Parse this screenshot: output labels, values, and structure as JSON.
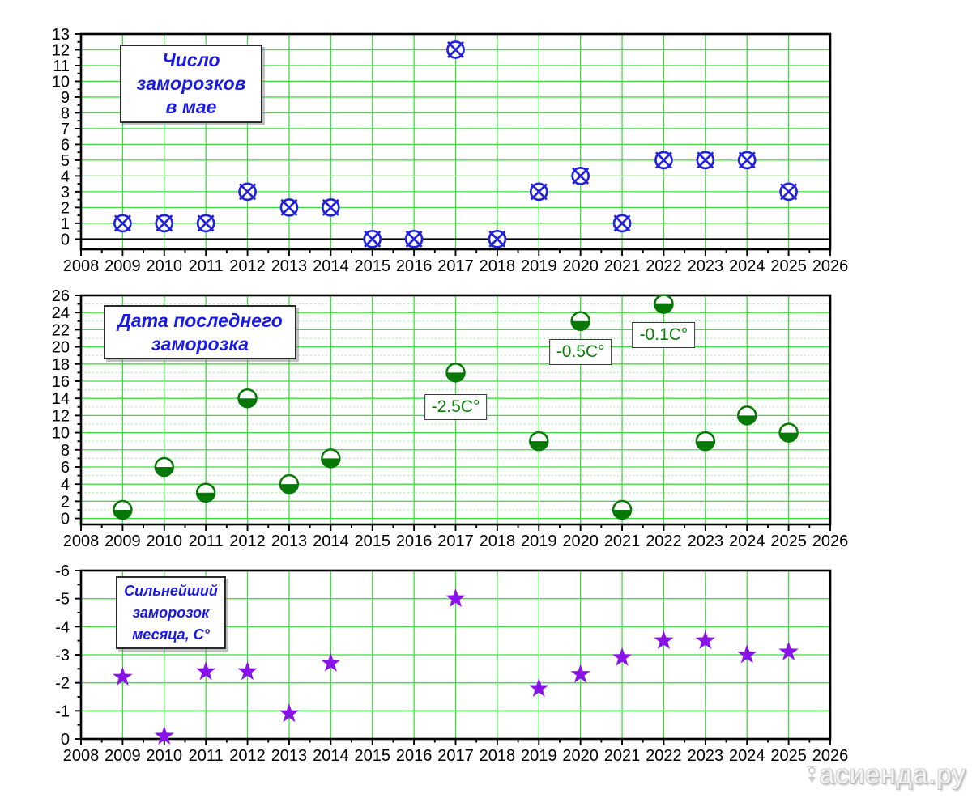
{
  "figure": {
    "background": "#ffffff"
  },
  "watermark": {
    "text": "асиенда.ру",
    "icon": "shovel-sprout-icon"
  },
  "x_axis": {
    "min": 2008,
    "max": 2026,
    "tick_labels": [
      "2008",
      "2009",
      "2010",
      "2011",
      "2012",
      "2013",
      "2014",
      "2015",
      "2016",
      "2017",
      "2018",
      "2019",
      "2020",
      "2021",
      "2022",
      "2023",
      "2024",
      "2025",
      "2026"
    ]
  },
  "colors": {
    "grid_major": "#3edd3e",
    "grid_minor": "#9ce89c",
    "axis": "#000000",
    "title_text": "#1a1ae6",
    "annotation_text": "#0a7d0a"
  },
  "chart_data": [
    {
      "type": "scatter",
      "title": "Число заморозков в мае",
      "title_lines": [
        "Число",
        "заморозков",
        "в мае"
      ],
      "marker": "circled-x",
      "marker_color": "#2222dd",
      "x": [
        2009,
        2010,
        2011,
        2012,
        2013,
        2014,
        2015,
        2016,
        2017,
        2018,
        2019,
        2020,
        2021,
        2022,
        2023,
        2024,
        2025
      ],
      "y": [
        1,
        1,
        1,
        3,
        2,
        2,
        0,
        0,
        12,
        0,
        3,
        4,
        1,
        5,
        5,
        5,
        3
      ],
      "xlim": [
        2008,
        2026
      ],
      "ylim": [
        0,
        13
      ],
      "yticks": [
        0,
        1,
        2,
        3,
        4,
        5,
        6,
        7,
        8,
        9,
        10,
        11,
        12,
        13
      ],
      "ytick_labels": [
        "0",
        "1",
        "2",
        "3",
        "4",
        "5",
        "6",
        "7",
        "8",
        "9",
        "10",
        "11",
        "12",
        "13"
      ],
      "grid": "major-horizontal-and-vertical",
      "minor_gridlines": "none",
      "zero_line": true,
      "legend": "none",
      "annotations": []
    },
    {
      "type": "scatter",
      "title": "Дата последнего заморозка",
      "title_lines": [
        "Дата последнего",
        "заморозка"
      ],
      "marker": "half-filled-circle",
      "marker_color": "#067806",
      "x": [
        2009,
        2010,
        2011,
        2012,
        2013,
        2014,
        2017,
        2019,
        2020,
        2021,
        2022,
        2023,
        2024,
        2025
      ],
      "y": [
        1,
        6,
        3,
        14,
        4,
        7,
        17,
        9,
        23,
        1,
        25,
        9,
        12,
        10
      ],
      "xlim": [
        2008,
        2026
      ],
      "ylim": [
        0,
        26
      ],
      "yticks": [
        0,
        2,
        4,
        6,
        8,
        10,
        12,
        14,
        16,
        18,
        20,
        22,
        24,
        26
      ],
      "ytick_labels": [
        "0",
        "2",
        "4",
        "6",
        "8",
        "10",
        "12",
        "14",
        "16",
        "18",
        "20",
        "22",
        "24",
        "26"
      ],
      "grid": "major-horizontal-and-vertical",
      "minor_gridlines": "dotted-at-odd-values",
      "zero_line": false,
      "legend": "none",
      "annotations": [
        {
          "text": "-2.5C°",
          "year": 2017,
          "top_value": 14.5
        },
        {
          "text": "-0.5C°",
          "year": 2020,
          "top_value": 20.9
        },
        {
          "text": "-0.1C°",
          "year": 2022,
          "top_value": 22.9
        }
      ]
    },
    {
      "type": "scatter",
      "title": "Сильнейший заморозок месяца, C°",
      "title_lines": [
        "Сильнейший",
        "заморозок",
        "месяца, C°"
      ],
      "marker": "star",
      "marker_color": "#8812e8",
      "x": [
        2009,
        2010,
        2011,
        2012,
        2013,
        2014,
        2017,
        2019,
        2020,
        2021,
        2022,
        2023,
        2024,
        2025
      ],
      "y": [
        -2.2,
        -0.1,
        -2.4,
        -2.4,
        -0.9,
        -2.7,
        -5.0,
        -1.8,
        -2.3,
        -2.9,
        -3.5,
        -3.5,
        -3.0,
        -3.1
      ],
      "xlim": [
        2008,
        2026
      ],
      "ylim": [
        -6,
        0
      ],
      "y_axis_inverted": true,
      "yticks": [
        -6,
        -5,
        -4,
        -3,
        -2,
        -1,
        0
      ],
      "ytick_labels": [
        "-6",
        "-5",
        "-4",
        "-3",
        "-2",
        "-1",
        "0"
      ],
      "grid": "major-horizontal-and-vertical",
      "minor_gridlines": "none",
      "zero_line": false,
      "legend": "none",
      "annotations": []
    }
  ]
}
